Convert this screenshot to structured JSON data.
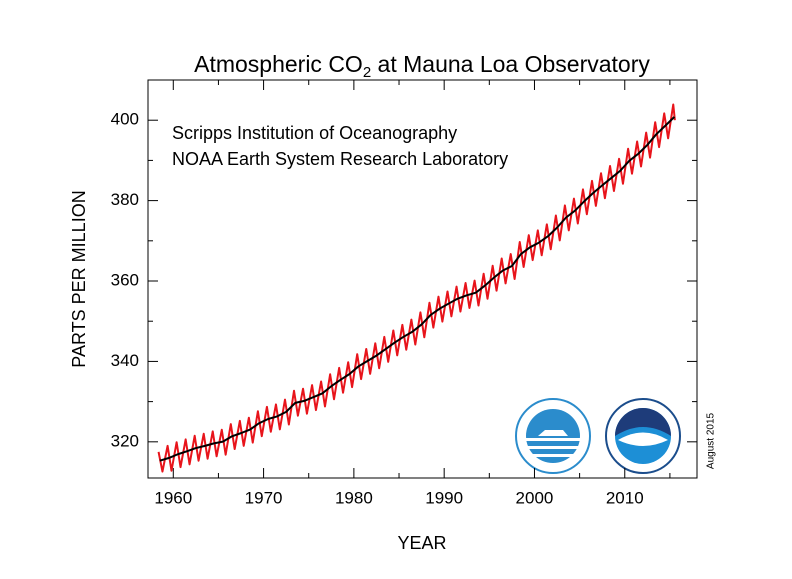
{
  "chart_data": {
    "type": "line",
    "title": {
      "main": "Atmospheric CO",
      "subscript": "2",
      "rest": " at Mauna Loa Observatory"
    },
    "annotations": [
      "Scripps Institution of Oceanography",
      "NOAA Earth System Research Laboratory"
    ],
    "date_note": "August 2015",
    "x_label": "YEAR",
    "y_label": "PARTS PER MILLION",
    "xlim": [
      1957.2,
      2018
    ],
    "ylim": [
      311,
      410
    ],
    "xticks": [
      1960,
      1970,
      1980,
      1990,
      2000,
      2010
    ],
    "xminorticks": [
      1965,
      1975,
      1985,
      1995,
      2005,
      2015
    ],
    "yticks": [
      320,
      340,
      360,
      380,
      400
    ],
    "yminorticks": [
      330,
      350,
      370,
      390
    ],
    "series": [
      {
        "color": "#e8141b",
        "x": [
          1958.37,
          1958.8,
          1959.37,
          1959.8,
          1960.37,
          1960.8,
          1961.37,
          1961.8,
          1962.37,
          1962.8,
          1963.37,
          1963.8,
          1964.37,
          1964.8,
          1965.37,
          1965.8,
          1966.37,
          1966.8,
          1967.37,
          1967.8,
          1968.37,
          1968.8,
          1969.37,
          1969.8,
          1970.37,
          1970.8,
          1971.37,
          1971.8,
          1972.37,
          1972.8,
          1973.37,
          1973.8,
          1974.37,
          1974.8,
          1975.37,
          1975.8,
          1976.37,
          1976.8,
          1977.37,
          1977.8,
          1978.37,
          1978.8,
          1979.37,
          1979.8,
          1980.37,
          1980.8,
          1981.37,
          1981.8,
          1982.37,
          1982.8,
          1983.37,
          1983.8,
          1984.37,
          1984.8,
          1985.37,
          1985.8,
          1986.37,
          1986.8,
          1987.37,
          1987.8,
          1988.37,
          1988.8,
          1989.37,
          1989.8,
          1990.37,
          1990.8,
          1991.37,
          1991.8,
          1992.37,
          1992.8,
          1993.37,
          1993.8,
          1994.37,
          1994.8,
          1995.37,
          1995.8,
          1996.37,
          1996.8,
          1997.37,
          1997.8,
          1998.37,
          1998.8,
          1999.37,
          1999.8,
          2000.37,
          2000.8,
          2001.37,
          2001.8,
          2002.37,
          2002.8,
          2003.37,
          2003.8,
          2004.37,
          2004.8,
          2005.37,
          2005.8,
          2006.37,
          2006.8,
          2007.37,
          2007.8,
          2008.37,
          2008.8,
          2009.37,
          2009.8,
          2010.37,
          2010.8,
          2011.37,
          2011.8,
          2012.37,
          2012.8,
          2013.37,
          2013.8,
          2014.37,
          2014.8,
          2015.37,
          2015.55
        ],
        "values": [
          317.5,
          312.6,
          319.0,
          312.8,
          319.9,
          313.7,
          320.6,
          314.4,
          321.5,
          315.3,
          322.0,
          315.8,
          322.6,
          316.4,
          323.0,
          316.8,
          324.4,
          318.2,
          325.2,
          319.0,
          326.0,
          319.8,
          327.6,
          321.4,
          328.7,
          322.5,
          329.3,
          323.1,
          330.5,
          324.3,
          332.7,
          326.5,
          333.2,
          327.0,
          334.1,
          327.9,
          335.0,
          328.8,
          336.8,
          330.6,
          338.4,
          332.2,
          339.8,
          333.6,
          341.8,
          335.6,
          343.1,
          336.9,
          344.5,
          338.3,
          346.1,
          339.9,
          347.7,
          341.5,
          349.1,
          342.9,
          350.4,
          344.2,
          352.2,
          346.0,
          354.6,
          348.4,
          356.1,
          349.9,
          357.4,
          351.2,
          358.6,
          352.4,
          359.5,
          353.3,
          360.1,
          353.9,
          361.8,
          355.6,
          363.8,
          357.6,
          365.6,
          359.4,
          366.7,
          360.5,
          369.7,
          363.5,
          371.4,
          365.2,
          372.6,
          366.4,
          374.1,
          367.9,
          376.3,
          370.1,
          378.8,
          372.6,
          380.5,
          374.3,
          382.8,
          376.6,
          384.9,
          378.7,
          386.8,
          380.6,
          388.6,
          382.4,
          390.4,
          384.2,
          392.9,
          386.7,
          394.7,
          388.5,
          396.9,
          390.7,
          399.5,
          393.3,
          401.7,
          395.5,
          403.9,
          400.0
        ]
      },
      {
        "color": "#000000",
        "x": [
          1958.5,
          1959.5,
          1960.5,
          1961.5,
          1962.5,
          1963.5,
          1964.5,
          1965.5,
          1966.5,
          1967.5,
          1968.5,
          1969.5,
          1970.5,
          1971.5,
          1972.5,
          1973.5,
          1974.5,
          1975.5,
          1976.5,
          1977.5,
          1978.5,
          1979.5,
          1980.5,
          1981.5,
          1982.5,
          1983.5,
          1984.5,
          1985.5,
          1986.5,
          1987.5,
          1988.5,
          1989.5,
          1990.5,
          1991.5,
          1992.5,
          1993.5,
          1994.5,
          1995.5,
          1996.5,
          1997.5,
          1998.5,
          1999.5,
          2000.5,
          2001.5,
          2002.5,
          2003.5,
          2004.5,
          2005.5,
          2006.5,
          2007.5,
          2008.5,
          2009.5,
          2010.5,
          2011.5,
          2012.5,
          2013.5,
          2014.5,
          2015.5
        ],
        "values": [
          315.3,
          315.97,
          316.91,
          317.64,
          318.45,
          318.99,
          319.62,
          320.04,
          321.38,
          322.16,
          323.04,
          324.62,
          325.68,
          326.32,
          327.45,
          329.68,
          330.18,
          331.11,
          332.04,
          333.83,
          335.4,
          336.84,
          338.75,
          340.11,
          341.45,
          343.05,
          344.65,
          346.12,
          347.42,
          349.19,
          351.57,
          353.12,
          354.39,
          355.61,
          356.45,
          357.1,
          358.83,
          360.82,
          362.61,
          363.73,
          366.7,
          368.38,
          369.55,
          371.14,
          373.28,
          375.8,
          377.52,
          379.8,
          381.9,
          383.79,
          385.6,
          387.43,
          389.9,
          391.65,
          393.85,
          396.52,
          398.65,
          400.83
        ]
      }
    ]
  }
}
